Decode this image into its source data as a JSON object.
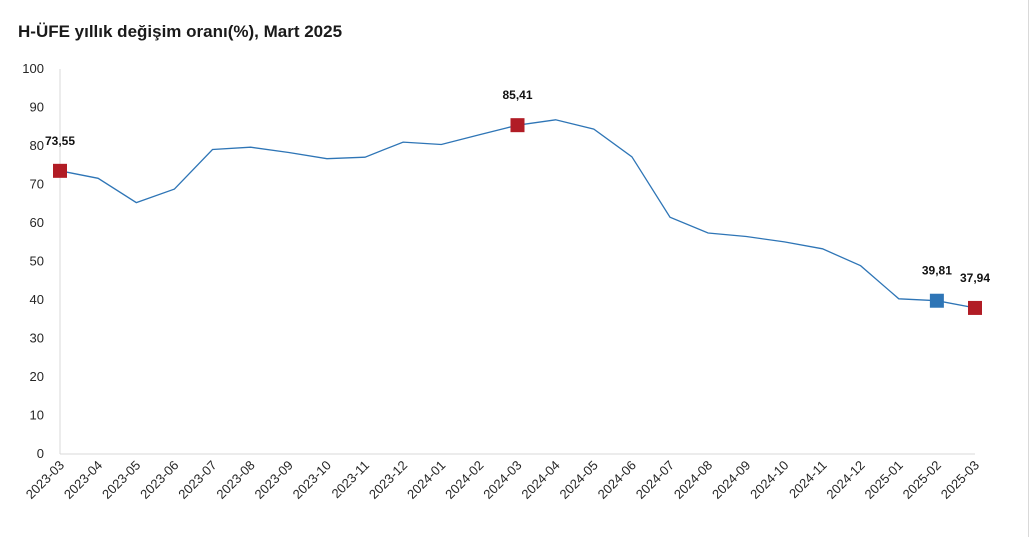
{
  "title": "H-ÜFE yıllık değişim oranı(%), Mart 2025",
  "chart_data": {
    "type": "line",
    "title": "H-ÜFE yıllık değişim oranı(%), Mart 2025",
    "xlabel": "",
    "ylabel": "",
    "ylim": [
      0,
      100
    ],
    "yticks": [
      0,
      10,
      20,
      30,
      40,
      50,
      60,
      70,
      80,
      90,
      100
    ],
    "grid": false,
    "categories": [
      "2023-03",
      "2023-04",
      "2023-05",
      "2023-06",
      "2023-07",
      "2023-08",
      "2023-09",
      "2023-10",
      "2023-11",
      "2023-12",
      "2024-01",
      "2024-02",
      "2024-03",
      "2024-04",
      "2024-05",
      "2024-06",
      "2024-07",
      "2024-08",
      "2024-09",
      "2024-10",
      "2024-11",
      "2024-12",
      "2025-01",
      "2025-02",
      "2025-03"
    ],
    "series": [
      {
        "name": "",
        "color": "#2e75b6",
        "values": [
          73.55,
          71.6,
          65.3,
          68.8,
          79.1,
          79.7,
          78.3,
          76.7,
          77.1,
          81.0,
          80.4,
          82.9,
          85.41,
          86.8,
          84.4,
          77.2,
          61.5,
          57.4,
          56.5,
          55.1,
          53.3,
          48.9,
          40.3,
          39.81,
          37.94
        ]
      }
    ],
    "markers": [
      {
        "index": 0,
        "label": "73,55",
        "color": "#b11c25"
      },
      {
        "index": 12,
        "label": "85,41",
        "color": "#b11c25"
      },
      {
        "index": 23,
        "label": "39,81",
        "color": "#2e75b6"
      },
      {
        "index": 24,
        "label": "37,94",
        "color": "#b11c25"
      }
    ]
  }
}
